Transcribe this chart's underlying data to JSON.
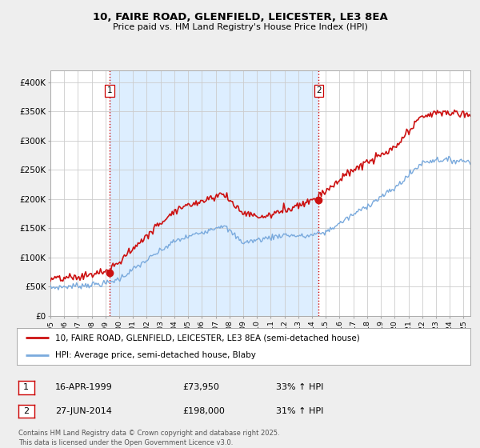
{
  "title_line1": "10, FAIRE ROAD, GLENFIELD, LEICESTER, LE3 8EA",
  "title_line2": "Price paid vs. HM Land Registry's House Price Index (HPI)",
  "xlim_start": 1995.0,
  "xlim_end": 2025.5,
  "ylim_min": 0,
  "ylim_max": 420000,
  "yticks": [
    0,
    50000,
    100000,
    150000,
    200000,
    250000,
    300000,
    350000,
    400000
  ],
  "ytick_labels": [
    "£0",
    "£50K",
    "£100K",
    "£150K",
    "£200K",
    "£250K",
    "£300K",
    "£350K",
    "£400K"
  ],
  "xticks": [
    1995,
    1996,
    1997,
    1998,
    1999,
    2000,
    2001,
    2002,
    2003,
    2004,
    2005,
    2006,
    2007,
    2008,
    2009,
    2010,
    2011,
    2012,
    2013,
    2014,
    2015,
    2016,
    2017,
    2018,
    2019,
    2020,
    2021,
    2022,
    2023,
    2024,
    2025
  ],
  "transaction1_x": 1999.29,
  "transaction1_y": 73950,
  "transaction2_x": 2014.49,
  "transaction2_y": 198000,
  "vline_color": "#cc0000",
  "shade_color": "#ddeeff",
  "red_line_color": "#cc1111",
  "blue_line_color": "#7aaadd",
  "legend1_label": "10, FAIRE ROAD, GLENFIELD, LEICESTER, LE3 8EA (semi-detached house)",
  "legend2_label": "HPI: Average price, semi-detached house, Blaby",
  "footnote": "Contains HM Land Registry data © Crown copyright and database right 2025.\nThis data is licensed under the Open Government Licence v3.0.",
  "bg_color": "#eeeeee",
  "plot_bg_color": "#ffffff",
  "grid_color": "#cccccc"
}
